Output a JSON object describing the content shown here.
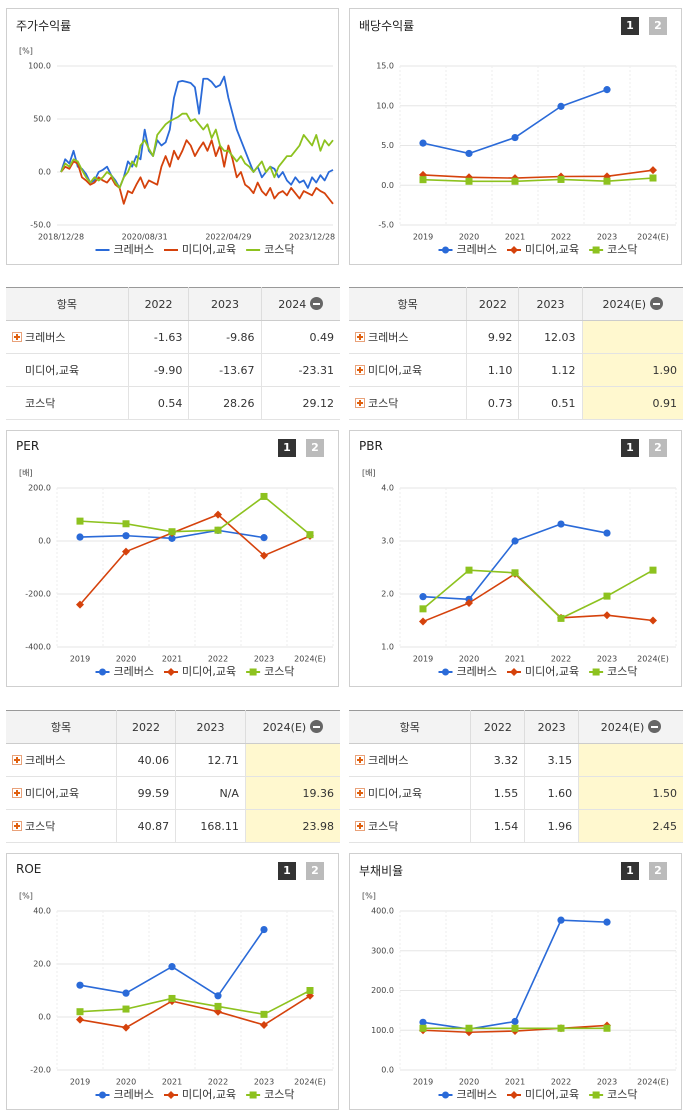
{
  "chart_data": [
    {
      "type": "line",
      "title": "주가수익률",
      "unit": "[%]",
      "markers": false,
      "categories": [
        "2018/12/28",
        null,
        null,
        null,
        null,
        null,
        null,
        null,
        null,
        null,
        null,
        null,
        null,
        null,
        null,
        null,
        null,
        null,
        null,
        null,
        "2020/08/31",
        null,
        null,
        null,
        null,
        null,
        null,
        null,
        null,
        null,
        null,
        null,
        null,
        null,
        null,
        null,
        null,
        null,
        null,
        null,
        "2022/04/29",
        null,
        null,
        null,
        null,
        null,
        null,
        null,
        null,
        null,
        null,
        null,
        null,
        null,
        null,
        null,
        null,
        null,
        null,
        null,
        "2023/12/28",
        null,
        null,
        null,
        null,
        null
      ],
      "ylim": [
        -50,
        100
      ],
      "yticks": [
        {
          "value": 100,
          "label": "100.0"
        },
        {
          "value": 50,
          "label": "50.0"
        },
        {
          "value": 0,
          "label": "0.0"
        },
        {
          "value": -50,
          "label": "-50.0"
        }
      ],
      "grid": true,
      "series": [
        {
          "name": "크레버스",
          "color": "#2a6ad8",
          "values": [
            0,
            12,
            8,
            20,
            5,
            3,
            -2,
            -10,
            -8,
            0,
            2,
            5,
            -3,
            -8,
            -15,
            -5,
            10,
            5,
            15,
            12,
            40,
            20,
            15,
            30,
            25,
            28,
            40,
            70,
            85,
            86,
            85,
            84,
            80,
            55,
            88,
            88,
            85,
            80,
            82,
            90,
            70,
            55,
            40,
            30,
            20,
            10,
            0,
            5,
            -5,
            0,
            5,
            3,
            -5,
            0,
            -8,
            -12,
            -5,
            -10,
            -8,
            -15,
            -5,
            -10,
            -3,
            -8,
            0,
            2
          ]
        },
        {
          "name": "미디어,교육",
          "color": "#d5420c",
          "values": [
            0,
            5,
            3,
            10,
            8,
            -5,
            -8,
            -12,
            -10,
            -5,
            -8,
            -10,
            -5,
            -12,
            -15,
            -30,
            -18,
            -20,
            -12,
            -5,
            -15,
            -8,
            -10,
            -12,
            5,
            15,
            5,
            20,
            12,
            20,
            30,
            25,
            15,
            22,
            28,
            20,
            30,
            15,
            25,
            5,
            25,
            12,
            -5,
            0,
            -12,
            -15,
            -20,
            -10,
            -18,
            -22,
            -15,
            -25,
            -20,
            -18,
            -22,
            -15,
            -20,
            -25,
            -18,
            -20,
            -22,
            -15,
            -18,
            -20,
            -25,
            -30
          ]
        },
        {
          "name": "코스닥",
          "color": "#8dc21f",
          "values": [
            0,
            8,
            5,
            12,
            10,
            2,
            -5,
            -10,
            -5,
            -8,
            -5,
            0,
            -3,
            -10,
            -15,
            -5,
            0,
            10,
            5,
            25,
            30,
            22,
            15,
            35,
            40,
            45,
            48,
            50,
            52,
            55,
            55,
            48,
            50,
            45,
            40,
            45,
            32,
            40,
            25,
            20,
            20,
            15,
            10,
            15,
            8,
            5,
            0,
            5,
            10,
            0,
            5,
            -5,
            5,
            10,
            15,
            15,
            20,
            25,
            35,
            30,
            25,
            35,
            20,
            30,
            25,
            30
          ]
        }
      ]
    },
    {
      "type": "line",
      "title": "배당수익률",
      "pages": [
        "1",
        "2"
      ],
      "markers": true,
      "categories": [
        "2019",
        "2020",
        "2021",
        "2022",
        "2023",
        "2024(E)"
      ],
      "ylim": [
        -5,
        15
      ],
      "yticks": [
        {
          "value": 15,
          "label": "15.0"
        },
        {
          "value": 10,
          "label": "10.0"
        },
        {
          "value": 5,
          "label": "5.0"
        },
        {
          "value": 0,
          "label": "0.0"
        },
        {
          "value": -5,
          "label": "-5.0"
        }
      ],
      "grid": true,
      "series": [
        {
          "name": "크레버스",
          "color": "#2a6ad8",
          "marker": "circle",
          "values": [
            5.3,
            4.0,
            6.0,
            9.92,
            12.03,
            null
          ]
        },
        {
          "name": "미디어,교육",
          "color": "#d5420c",
          "marker": "diamond",
          "values": [
            1.3,
            1.0,
            0.9,
            1.1,
            1.12,
            1.9
          ]
        },
        {
          "name": "코스닥",
          "color": "#8dc21f",
          "marker": "square",
          "values": [
            0.7,
            0.5,
            0.5,
            0.73,
            0.51,
            0.91
          ]
        }
      ]
    },
    {
      "type": "line",
      "title": "PER",
      "unit": "[배]",
      "pages": [
        "1",
        "2"
      ],
      "markers": true,
      "categories": [
        "2019",
        "2020",
        "2021",
        "2022",
        "2023",
        "2024(E)"
      ],
      "ylim": [
        -400,
        200
      ],
      "yticks": [
        {
          "value": 200,
          "label": "200.0"
        },
        {
          "value": 0,
          "label": "0.0"
        },
        {
          "value": -200,
          "label": "-200.0"
        },
        {
          "value": -400,
          "label": "-400.0"
        }
      ],
      "grid": true,
      "series": [
        {
          "name": "크레버스",
          "color": "#2a6ad8",
          "marker": "circle",
          "values": [
            15,
            20,
            10,
            40.06,
            12.71,
            null
          ]
        },
        {
          "name": "미디어,교육",
          "color": "#d5420c",
          "marker": "diamond",
          "values": [
            -240,
            -40,
            30,
            99.59,
            -55,
            19.36
          ]
        },
        {
          "name": "코스닥",
          "color": "#8dc21f",
          "marker": "square",
          "values": [
            75,
            65,
            35,
            40.87,
            168.11,
            23.98
          ]
        }
      ]
    },
    {
      "type": "line",
      "title": "PBR",
      "unit": "[배]",
      "pages": [
        "1",
        "2"
      ],
      "markers": true,
      "categories": [
        "2019",
        "2020",
        "2021",
        "2022",
        "2023",
        "2024(E)"
      ],
      "ylim": [
        1,
        4
      ],
      "yticks": [
        {
          "value": 4,
          "label": "4.0"
        },
        {
          "value": 3,
          "label": "3.0"
        },
        {
          "value": 2,
          "label": "2.0"
        },
        {
          "value": 1,
          "label": "1.0"
        }
      ],
      "grid": true,
      "series": [
        {
          "name": "크레버스",
          "color": "#2a6ad8",
          "marker": "circle",
          "values": [
            1.95,
            1.9,
            3.0,
            3.32,
            3.15,
            null
          ]
        },
        {
          "name": "미디어,교육",
          "color": "#d5420c",
          "marker": "diamond",
          "values": [
            1.48,
            1.83,
            2.38,
            1.55,
            1.6,
            1.5
          ]
        },
        {
          "name": "코스닥",
          "color": "#8dc21f",
          "marker": "square",
          "values": [
            1.72,
            2.45,
            2.4,
            1.54,
            1.96,
            2.45
          ]
        }
      ]
    },
    {
      "type": "line",
      "title": "ROE",
      "unit": "[%]",
      "pages": [
        "1",
        "2"
      ],
      "markers": true,
      "categories": [
        "2019",
        "2020",
        "2021",
        "2022",
        "2023",
        "2024(E)"
      ],
      "ylim": [
        -20,
        40
      ],
      "yticks": [
        {
          "value": 40,
          "label": "40.0"
        },
        {
          "value": 20,
          "label": "20.0"
        },
        {
          "value": 0,
          "label": "0.0"
        },
        {
          "value": -20,
          "label": "-20.0"
        }
      ],
      "grid": true,
      "series": [
        {
          "name": "크레버스",
          "color": "#2a6ad8",
          "marker": "circle",
          "values": [
            12,
            9,
            19,
            8,
            33,
            null
          ]
        },
        {
          "name": "미디어,교육",
          "color": "#d5420c",
          "marker": "diamond",
          "values": [
            -1,
            -4,
            6,
            2,
            -3,
            8
          ]
        },
        {
          "name": "코스닥",
          "color": "#8dc21f",
          "marker": "square",
          "values": [
            2,
            3,
            7,
            4,
            1,
            10
          ]
        }
      ]
    },
    {
      "type": "line",
      "title": "부채비율",
      "unit": "[%]",
      "pages": [
        "1",
        "2"
      ],
      "markers": true,
      "categories": [
        "2019",
        "2020",
        "2021",
        "2022",
        "2023",
        "2024(E)"
      ],
      "ylim": [
        0,
        400
      ],
      "yticks": [
        {
          "value": 400,
          "label": "400.0"
        },
        {
          "value": 300,
          "label": "300.0"
        },
        {
          "value": 200,
          "label": "200.0"
        },
        {
          "value": 100,
          "label": "100.0"
        },
        {
          "value": 0,
          "label": "0.0"
        }
      ],
      "grid": true,
      "series": [
        {
          "name": "크레버스",
          "color": "#2a6ad8",
          "marker": "circle",
          "values": [
            120,
            103,
            122,
            377,
            372,
            null
          ]
        },
        {
          "name": "미디어,교육",
          "color": "#d5420c",
          "marker": "diamond",
          "values": [
            100,
            95,
            98,
            105,
            112,
            null
          ]
        },
        {
          "name": "코스닥",
          "color": "#8dc21f",
          "marker": "square",
          "values": [
            105,
            105,
            105,
            105,
            105,
            null
          ]
        }
      ]
    }
  ],
  "tables": [
    {
      "headers": [
        "항목",
        "2022",
        "2023",
        "2024"
      ],
      "highlight_last": false,
      "rows": [
        {
          "name": "크레버스",
          "expandable": true,
          "values": [
            "-1.63",
            "-9.86",
            "0.49"
          ]
        },
        {
          "name": "미디어,교육",
          "expandable": false,
          "values": [
            "-9.90",
            "-13.67",
            "-23.31"
          ]
        },
        {
          "name": "코스닥",
          "expandable": false,
          "values": [
            "0.54",
            "28.26",
            "29.12"
          ]
        }
      ]
    },
    {
      "headers": [
        "항목",
        "2022",
        "2023",
        "2024(E)"
      ],
      "highlight_last": true,
      "rows": [
        {
          "name": "크레버스",
          "expandable": true,
          "values": [
            "9.92",
            "12.03",
            null
          ]
        },
        {
          "name": "미디어,교육",
          "expandable": true,
          "values": [
            "1.10",
            "1.12",
            "1.90"
          ]
        },
        {
          "name": "코스닥",
          "expandable": true,
          "values": [
            "0.73",
            "0.51",
            "0.91"
          ]
        }
      ]
    },
    {
      "headers": [
        "항목",
        "2022",
        "2023",
        "2024(E)"
      ],
      "highlight_last": true,
      "rows": [
        {
          "name": "크레버스",
          "expandable": true,
          "values": [
            "40.06",
            "12.71",
            null
          ]
        },
        {
          "name": "미디어,교육",
          "expandable": true,
          "values": [
            "99.59",
            "N/A",
            "19.36"
          ]
        },
        {
          "name": "코스닥",
          "expandable": true,
          "values": [
            "40.87",
            "168.11",
            "23.98"
          ]
        }
      ]
    },
    {
      "headers": [
        "항목",
        "2022",
        "2023",
        "2024(E)"
      ],
      "highlight_last": true,
      "rows": [
        {
          "name": "크레버스",
          "expandable": true,
          "values": [
            "3.32",
            "3.15",
            null
          ]
        },
        {
          "name": "미디어,교육",
          "expandable": true,
          "values": [
            "1.55",
            "1.60",
            "1.50"
          ]
        },
        {
          "name": "코스닥",
          "expandable": true,
          "values": [
            "1.54",
            "1.96",
            "2.45"
          ]
        }
      ]
    }
  ]
}
